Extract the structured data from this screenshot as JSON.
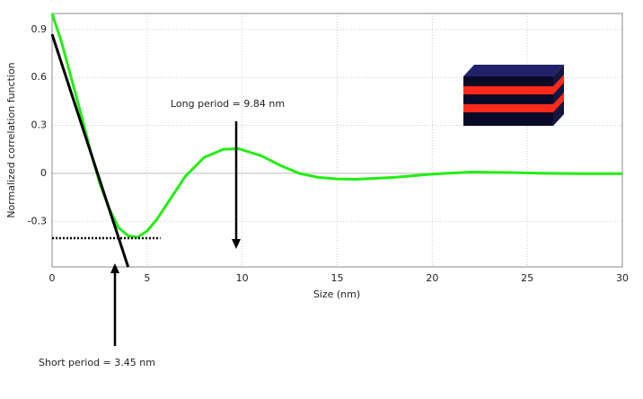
{
  "chart_data": {
    "type": "line",
    "xlabel": "Size (nm)",
    "ylabel": "Normalized correlation function",
    "xlim": [
      0,
      30
    ],
    "xticks": [
      0,
      5,
      10,
      15,
      20,
      25,
      30
    ],
    "ylim": [
      -0.585,
      1.0
    ],
    "yticks": [
      0.9,
      0.6,
      0.3,
      0,
      -0.3
    ],
    "grid": true,
    "series": [
      {
        "color": "#22ee11",
        "style": "solid",
        "x": [
          0,
          0.5,
          1,
          1.5,
          2,
          2.5,
          3,
          3.5,
          4,
          4.5,
          5,
          5.5,
          6,
          7,
          8,
          9,
          9.8,
          11,
          12,
          13,
          14,
          15,
          16,
          18,
          20,
          22,
          24,
          26,
          28,
          30
        ],
        "values": [
          1.0,
          0.82,
          0.6,
          0.38,
          0.15,
          -0.06,
          -0.22,
          -0.34,
          -0.39,
          -0.4,
          -0.36,
          -0.29,
          -0.2,
          -0.02,
          0.1,
          0.15,
          0.155,
          0.11,
          0.05,
          0.0,
          -0.025,
          -0.035,
          -0.037,
          -0.025,
          -0.005,
          0.008,
          0.005,
          0.0,
          -0.002,
          -0.002
        ]
      },
      {
        "color": "#000000",
        "style": "solid",
        "x": [
          0,
          4.0
        ],
        "values": [
          0.87,
          -0.585
        ]
      },
      {
        "color": "#000000",
        "style": "dotted",
        "x": [
          0,
          5.7
        ],
        "values": [
          -0.405,
          -0.405
        ]
      }
    ],
    "annotations": [
      "Long period = 9.84 nm",
      "Short period = 3.45 nm"
    ]
  }
}
